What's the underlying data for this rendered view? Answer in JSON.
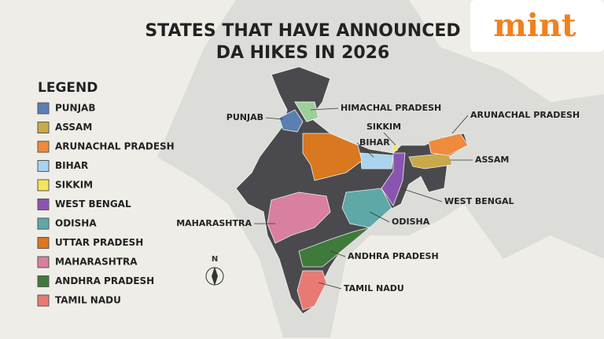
{
  "header": {
    "title_lines": [
      "STATES THAT HAVE ANNOUNCED",
      "DA HIKES IN 2026"
    ],
    "brand": "mint",
    "compass": "N"
  },
  "legend": {
    "title": "LEGEND",
    "items": [
      {
        "label": "PUNJAB",
        "color": "#5b7fb3"
      },
      {
        "label": "ASSAM",
        "color": "#c9a94a"
      },
      {
        "label": "ARUNACHAL PRADESH",
        "color": "#f08a3c"
      },
      {
        "label": "BIHAR",
        "color": "#a9d3ee"
      },
      {
        "label": "SIKKIM",
        "color": "#f5e65a"
      },
      {
        "label": "WEST BENGAL",
        "color": "#8a55b0"
      },
      {
        "label": "ODISHA",
        "color": "#5fa8a8"
      },
      {
        "label": "UTTAR PRADESH",
        "color": "#d9781e"
      },
      {
        "label": "MAHARASHTRA",
        "color": "#d97fa0"
      },
      {
        "label": "ANDHRA PRADESH",
        "color": "#3f7a3a"
      },
      {
        "label": "TAMIL NADU",
        "color": "#e87a74"
      }
    ]
  },
  "map_labels": [
    "PUNJAB",
    "HIMACHAL PRADESH",
    "ARUNACHAL PRADESH",
    "SIKKIM",
    "BIHAR",
    "ASSAM",
    "WEST BENGAL",
    "ODISHA",
    "MAHARASHTRA",
    "ANDHRA PRADESH",
    "TAMIL NADU"
  ]
}
